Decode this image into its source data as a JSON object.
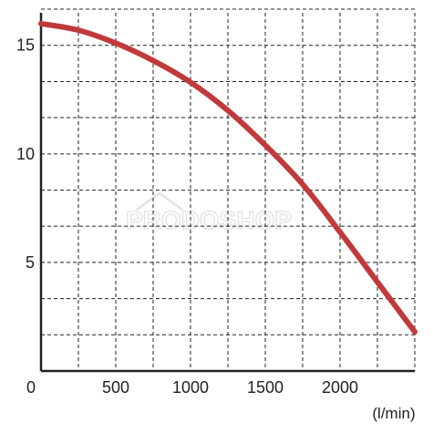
{
  "chart_data": {
    "type": "line",
    "title": "",
    "xlabel": "(l/min)",
    "ylabel": "",
    "origin_label": "0",
    "xlim": [
      0,
      2500
    ],
    "ylim": [
      0,
      16.5
    ],
    "x_ticks": [
      500,
      1000,
      1500,
      2000
    ],
    "y_ticks": [
      5,
      10,
      15
    ],
    "x_tick_labels": [
      "500",
      "1000",
      "1500",
      "2000"
    ],
    "y_tick_labels": [
      "5",
      "10",
      "15"
    ],
    "grid": true,
    "grid_style": "dashed",
    "x_grid_values": [
      250,
      500,
      750,
      1000,
      1250,
      1500,
      1750,
      2000,
      2250,
      2500
    ],
    "y_grid_values": [
      1.67,
      3.33,
      5,
      6.67,
      8.33,
      10,
      11.67,
      13.33,
      15,
      16.67
    ],
    "series": [
      {
        "color": "#c1393b",
        "x": [
          0,
          250,
          500,
          750,
          1000,
          1250,
          1500,
          1750,
          2000,
          2250,
          2500
        ],
        "y": [
          16.0,
          15.7,
          15.1,
          14.3,
          13.3,
          12.0,
          10.4,
          8.6,
          6.4,
          4.1,
          1.8
        ]
      }
    ]
  },
  "watermark": {
    "text": "PRODOSHOP"
  }
}
